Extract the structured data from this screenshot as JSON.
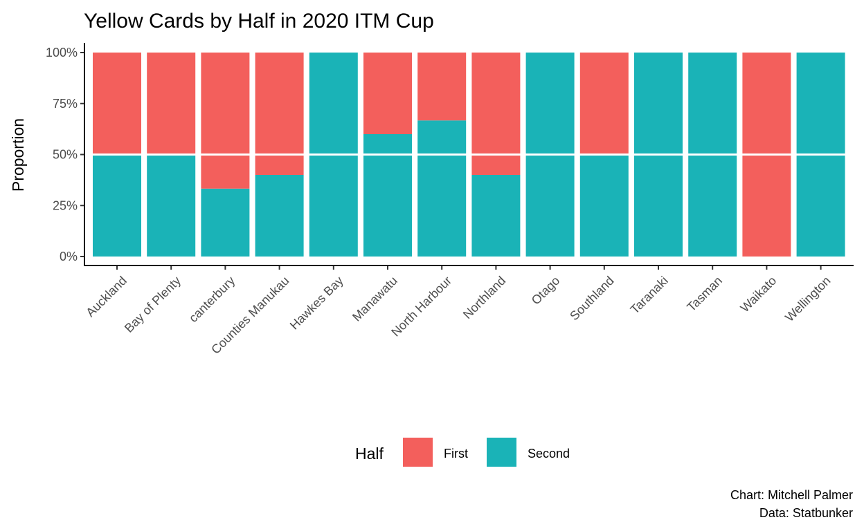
{
  "chart_data": {
    "type": "bar",
    "stacked": true,
    "position": "fill",
    "title": "Yellow Cards by Half in 2020 ITM Cup",
    "xlabel": "",
    "ylabel": "Proportion",
    "ylim": [
      0,
      1
    ],
    "yticks": [
      0,
      0.25,
      0.5,
      0.75,
      1.0
    ],
    "ytick_labels": [
      "0%",
      "25%",
      "50%",
      "75%",
      "100%"
    ],
    "reference_line": {
      "y": 0.5,
      "color": "#ffffff"
    },
    "categories": [
      "Auckland",
      "Bay of Plenty",
      "canterbury",
      "Counties Manukau",
      "Hawkes Bay",
      "Manawatu",
      "North Harbour",
      "Northland",
      "Otago",
      "Southland",
      "Taranaki",
      "Tasman",
      "Waikato",
      "Wellington"
    ],
    "series": [
      {
        "name": "First",
        "color": "#F35F5C",
        "values": [
          0.5,
          0.5,
          0.667,
          0.6,
          0.0,
          0.4,
          0.333,
          0.6,
          0.0,
          0.5,
          0.0,
          0.0,
          1.0,
          0.0
        ]
      },
      {
        "name": "Second",
        "color": "#1AB3B7",
        "values": [
          0.5,
          0.5,
          0.333,
          0.4,
          1.0,
          0.6,
          0.667,
          0.4,
          1.0,
          0.5,
          1.0,
          1.0,
          0.0,
          1.0
        ]
      }
    ],
    "legend": {
      "title": "Half",
      "position": "bottom",
      "entries": [
        "First",
        "Second"
      ]
    },
    "grid": false,
    "caption": [
      "Chart: Mitchell Palmer",
      "Data: Statbunker"
    ]
  }
}
